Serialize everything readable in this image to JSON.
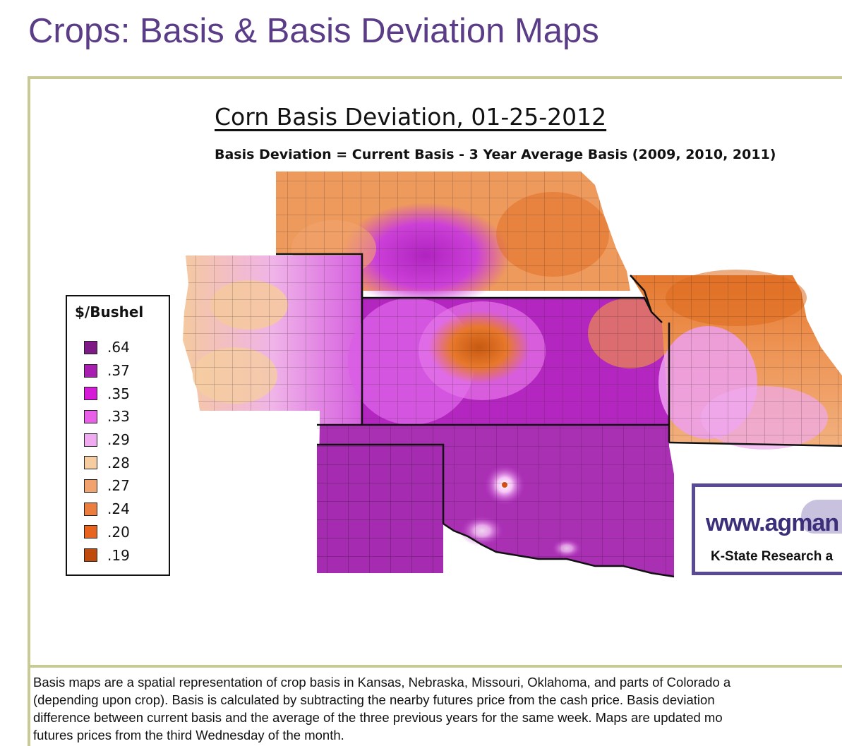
{
  "page": {
    "title": "Crops: Basis & Basis Deviation Maps"
  },
  "map": {
    "title": "Corn Basis Deviation, 01-25-2012",
    "subtitle": "Basis Deviation = Current Basis - 3 Year Average Basis (2009, 2010, 2011)"
  },
  "legend": {
    "title": "$/Bushel",
    "items": [
      {
        "value": ".64",
        "color": "#7d1a85"
      },
      {
        "value": ".37",
        "color": "#a71eb0"
      },
      {
        "value": ".35",
        "color": "#d51ad8"
      },
      {
        "value": ".33",
        "color": "#e860e8"
      },
      {
        "value": ".29",
        "color": "#f0aaf0"
      },
      {
        "value": ".28",
        "color": "#f5cda0"
      },
      {
        "value": ".27",
        "color": "#f2a36d"
      },
      {
        "value": ".24",
        "color": "#eb7e3f"
      },
      {
        "value": ".20",
        "color": "#e8631d"
      },
      {
        "value": ".19",
        "color": "#c04a0b"
      }
    ]
  },
  "logo": {
    "url_text": "www.agman",
    "org_text": "K-State Research a"
  },
  "caption": {
    "lines": [
      "Basis maps are a spatial representation of crop basis in Kansas, Nebraska, Missouri, Oklahoma, and parts of Colorado a",
      "(depending upon crop).  Basis is calculated by subtracting the nearby futures price from the cash price.  Basis deviation",
      "difference between current basis and the average of the three previous years for the same week.  Maps are updated mo",
      "futures prices from the third Wednesday of the month."
    ]
  }
}
